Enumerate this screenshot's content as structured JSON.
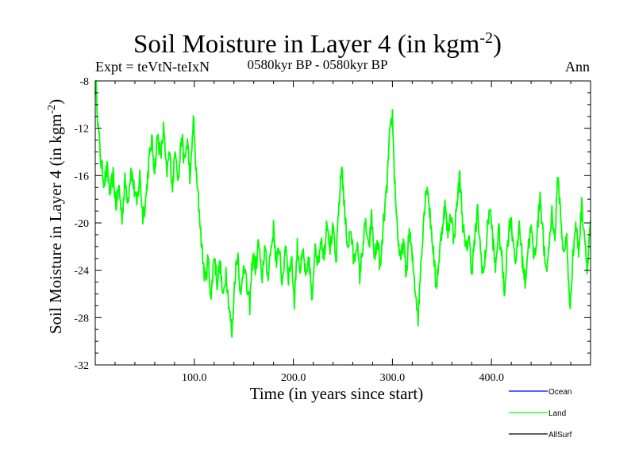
{
  "chart_data": {
    "type": "line",
    "title": "Soil Moisture in Layer 4 (in kgm",
    "title_sup": "-2",
    "subtitle": "0580kyr BP - 0580kyr BP",
    "experiment": "Expt = teVtN-teIxN",
    "season": "Ann",
    "xlabel": "Time (in years since start)",
    "ylabel": "Soil Moisture in Layer 4 (in kgm",
    "ylabel_sup": "-2",
    "ylabel_close": ")",
    "xlim": [
      0,
      500
    ],
    "ylim": [
      -32,
      -8
    ],
    "x_ticks": [
      100,
      200,
      300,
      400
    ],
    "x_tick_labels": [
      "100.0",
      "200.0",
      "300.0",
      "400.0"
    ],
    "y_ticks": [
      -8,
      -12,
      -16,
      -20,
      -24,
      -28,
      -32
    ],
    "y_tick_labels": [
      "-8",
      "-12",
      "-16",
      "-20",
      "-24",
      "-28",
      "-32"
    ],
    "legend": [
      {
        "name": "Ocean",
        "color": "#0000ff"
      },
      {
        "name": "Land",
        "color": "#00ff00"
      },
      {
        "name": "AllSurf",
        "color": "#000000"
      }
    ],
    "series": [
      {
        "name": "Land",
        "color": "#00ff00",
        "x_start": 1,
        "x_step": 1,
        "anchors": [
          [
            1,
            -8.5
          ],
          [
            3,
            -12.0
          ],
          [
            6,
            -15.0
          ],
          [
            9,
            -16.5
          ],
          [
            12,
            -15.5
          ],
          [
            15,
            -17.5
          ],
          [
            18,
            -16.0
          ],
          [
            21,
            -18.5
          ],
          [
            24,
            -17.0
          ],
          [
            27,
            -19.5
          ],
          [
            30,
            -16.5
          ],
          [
            33,
            -18.0
          ],
          [
            36,
            -15.5
          ],
          [
            39,
            -17.0
          ],
          [
            42,
            -18.5
          ],
          [
            45,
            -16.0
          ],
          [
            48,
            -19.5
          ],
          [
            51,
            -18.0
          ],
          [
            54,
            -15.0
          ],
          [
            57,
            -13.0
          ],
          [
            60,
            -15.5
          ],
          [
            63,
            -12.5
          ],
          [
            66,
            -14.5
          ],
          [
            69,
            -12.0
          ],
          [
            72,
            -16.0
          ],
          [
            75,
            -14.0
          ],
          [
            78,
            -17.0
          ],
          [
            81,
            -13.5
          ],
          [
            84,
            -16.5
          ],
          [
            87,
            -12.5
          ],
          [
            90,
            -15.0
          ],
          [
            93,
            -13.0
          ],
          [
            96,
            -16.5
          ],
          [
            99,
            -11.0
          ],
          [
            102,
            -16.0
          ],
          [
            105,
            -19.0
          ],
          [
            108,
            -22.5
          ],
          [
            111,
            -25.0
          ],
          [
            114,
            -23.0
          ],
          [
            117,
            -26.5
          ],
          [
            120,
            -22.5
          ],
          [
            123,
            -25.0
          ],
          [
            126,
            -23.5
          ],
          [
            129,
            -26.5
          ],
          [
            132,
            -24.0
          ],
          [
            135,
            -27.0
          ],
          [
            138,
            -29.5
          ],
          [
            141,
            -24.5
          ],
          [
            144,
            -22.5
          ],
          [
            147,
            -26.5
          ],
          [
            150,
            -23.0
          ],
          [
            153,
            -25.5
          ],
          [
            156,
            -27.0
          ],
          [
            159,
            -22.5
          ],
          [
            162,
            -24.0
          ],
          [
            165,
            -21.5
          ],
          [
            168,
            -25.0
          ],
          [
            171,
            -22.0
          ],
          [
            174,
            -24.5
          ],
          [
            177,
            -22.5
          ],
          [
            180,
            -20.5
          ],
          [
            183,
            -23.5
          ],
          [
            186,
            -22.0
          ],
          [
            189,
            -25.5
          ],
          [
            192,
            -21.5
          ],
          [
            195,
            -24.5
          ],
          [
            198,
            -23.0
          ],
          [
            201,
            -26.5
          ],
          [
            204,
            -22.0
          ],
          [
            207,
            -24.0
          ],
          [
            210,
            -22.5
          ],
          [
            213,
            -25.0
          ],
          [
            216,
            -23.0
          ],
          [
            219,
            -27.0
          ],
          [
            222,
            -21.5
          ],
          [
            225,
            -23.5
          ],
          [
            228,
            -21.0
          ],
          [
            231,
            -23.0
          ],
          [
            234,
            -19.5
          ],
          [
            237,
            -22.0
          ],
          [
            240,
            -20.5
          ],
          [
            243,
            -23.5
          ],
          [
            246,
            -18.5
          ],
          [
            249,
            -15.0
          ],
          [
            252,
            -19.5
          ],
          [
            255,
            -22.0
          ],
          [
            258,
            -20.5
          ],
          [
            261,
            -23.5
          ],
          [
            264,
            -21.5
          ],
          [
            267,
            -24.5
          ],
          [
            270,
            -22.0
          ],
          [
            273,
            -20.0
          ],
          [
            276,
            -22.5
          ],
          [
            279,
            -19.5
          ],
          [
            282,
            -23.0
          ],
          [
            285,
            -21.5
          ],
          [
            288,
            -24.0
          ],
          [
            291,
            -20.0
          ],
          [
            294,
            -17.5
          ],
          [
            297,
            -13.0
          ],
          [
            300,
            -10.8
          ],
          [
            302,
            -16.0
          ],
          [
            305,
            -20.5
          ],
          [
            308,
            -23.5
          ],
          [
            311,
            -21.5
          ],
          [
            314,
            -24.5
          ],
          [
            317,
            -20.5
          ],
          [
            320,
            -23.0
          ],
          [
            323,
            -25.5
          ],
          [
            326,
            -28.0
          ],
          [
            329,
            -23.0
          ],
          [
            332,
            -19.0
          ],
          [
            335,
            -16.5
          ],
          [
            338,
            -19.5
          ],
          [
            341,
            -22.0
          ],
          [
            344,
            -25.5
          ],
          [
            347,
            -23.0
          ],
          [
            350,
            -20.5
          ],
          [
            353,
            -18.5
          ],
          [
            356,
            -21.0
          ],
          [
            359,
            -19.0
          ],
          [
            362,
            -21.5
          ],
          [
            365,
            -18.5
          ],
          [
            368,
            -16.0
          ],
          [
            371,
            -20.0
          ],
          [
            374,
            -22.5
          ],
          [
            377,
            -21.0
          ],
          [
            380,
            -24.0
          ],
          [
            383,
            -21.5
          ],
          [
            386,
            -19.0
          ],
          [
            389,
            -22.5
          ],
          [
            392,
            -24.5
          ],
          [
            395,
            -21.5
          ],
          [
            398,
            -18.5
          ],
          [
            401,
            -21.0
          ],
          [
            404,
            -24.0
          ],
          [
            407,
            -20.5
          ],
          [
            410,
            -22.5
          ],
          [
            413,
            -26.0
          ],
          [
            416,
            -22.0
          ],
          [
            419,
            -19.5
          ],
          [
            422,
            -21.5
          ],
          [
            425,
            -23.5
          ],
          [
            428,
            -20.0
          ],
          [
            431,
            -23.0
          ],
          [
            434,
            -25.0
          ],
          [
            437,
            -22.0
          ],
          [
            440,
            -20.5
          ],
          [
            443,
            -23.0
          ],
          [
            446,
            -21.0
          ],
          [
            449,
            -17.5
          ],
          [
            452,
            -21.0
          ],
          [
            455,
            -24.5
          ],
          [
            458,
            -22.0
          ],
          [
            461,
            -19.0
          ],
          [
            464,
            -21.5
          ],
          [
            467,
            -16.0
          ],
          [
            470,
            -19.5
          ],
          [
            473,
            -23.0
          ],
          [
            476,
            -21.0
          ],
          [
            479,
            -27.5
          ],
          [
            482,
            -23.0
          ],
          [
            485,
            -20.0
          ],
          [
            488,
            -22.5
          ],
          [
            491,
            -18.5
          ],
          [
            494,
            -21.0
          ],
          [
            497,
            -24.0
          ],
          [
            499,
            -20.5
          ]
        ]
      }
    ]
  }
}
